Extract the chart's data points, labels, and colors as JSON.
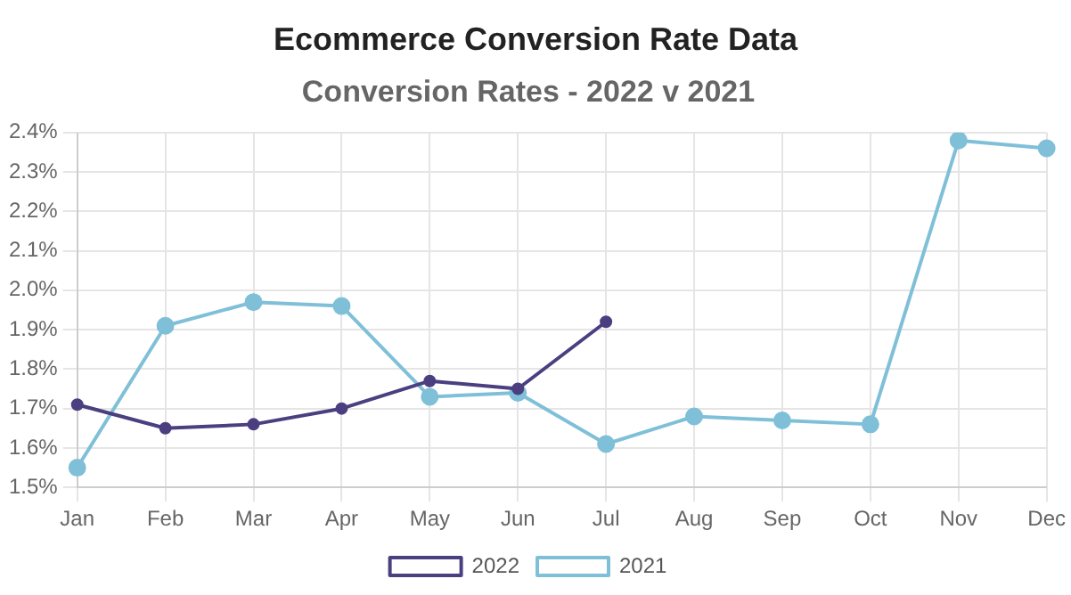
{
  "chart_data": {
    "type": "line",
    "title": "Ecommerce Conversion Rate Data",
    "subtitle": "Conversion Rates - 2022 v 2021",
    "categories": [
      "Jan",
      "Feb",
      "Mar",
      "Apr",
      "May",
      "Jun",
      "Jul",
      "Aug",
      "Sep",
      "Oct",
      "Nov",
      "Dec"
    ],
    "series": [
      {
        "name": "2022",
        "color": "#4b3f80",
        "values": [
          1.71,
          1.65,
          1.66,
          1.7,
          1.77,
          1.75,
          1.92,
          null,
          null,
          null,
          null,
          null
        ]
      },
      {
        "name": "2021",
        "color": "#7fc0d8",
        "values": [
          1.55,
          1.91,
          1.97,
          1.96,
          1.73,
          1.74,
          1.61,
          1.68,
          1.67,
          1.66,
          2.38,
          2.36
        ]
      }
    ],
    "ylim": [
      1.5,
      2.4
    ],
    "yticks": [
      {
        "value": 1.5,
        "label": "1.5%"
      },
      {
        "value": 1.6,
        "label": "1.6%"
      },
      {
        "value": 1.7,
        "label": "1.7%"
      },
      {
        "value": 1.8,
        "label": "1.8%"
      },
      {
        "value": 1.9,
        "label": "1.9%"
      },
      {
        "value": 2.0,
        "label": "2.0%"
      },
      {
        "value": 2.1,
        "label": "2.1%"
      },
      {
        "value": 2.2,
        "label": "2.2%"
      },
      {
        "value": 2.3,
        "label": "2.3%"
      },
      {
        "value": 2.4,
        "label": "2.4%"
      }
    ],
    "grid": true,
    "legend": "bottom",
    "marker": "circle",
    "line_style": "solid"
  }
}
